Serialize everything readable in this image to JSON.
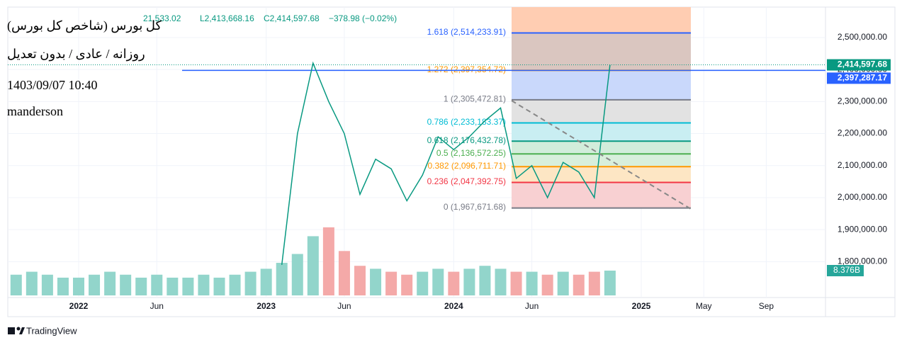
{
  "chart_data": {
    "type": "line",
    "title_lines": [
      "کل بورس (شاخص کل بورس)",
      "روزانه / عادی / بدون تعدیل",
      "1403/09/07 10:40",
      "manderson"
    ],
    "header_texts": [
      "21,533.02",
      "L2,413,668.16",
      "C2,414,597.68",
      "−378.98 (−0.02%)"
    ],
    "brand": "TradingView",
    "price": {
      "color": "#089981",
      "x": [
        "2023-02",
        "2023-03",
        "2023-04",
        "2023-05",
        "2023-06",
        "2023-07",
        "2023-08",
        "2023-09",
        "2023-10",
        "2023-11",
        "2023-12",
        "2024-01",
        "2024-02",
        "2024-03",
        "2024-04",
        "2024-05",
        "2024-06",
        "2024-07",
        "2024-08",
        "2024-09",
        "2024-10",
        "2024-11"
      ],
      "values": [
        1790000,
        2200000,
        2420000,
        2300000,
        2200000,
        2010000,
        2120000,
        2090000,
        1990000,
        2070000,
        2190000,
        2150000,
        2190000,
        2240000,
        2280000,
        2060000,
        2100000,
        2000000,
        2110000,
        2080000,
        2000000,
        2414597.68
      ],
      "last_label": "2,414,597.68"
    },
    "volume": {
      "up_color": "#92d5cb",
      "down_color": "#f4a9a8",
      "x": [
        "2021-09",
        "2021-10",
        "2021-11",
        "2021-12",
        "2022-01",
        "2022-02",
        "2022-03",
        "2022-04",
        "2022-05",
        "2022-06",
        "2022-07",
        "2022-08",
        "2022-09",
        "2022-10",
        "2022-11",
        "2022-12",
        "2023-01",
        "2023-02",
        "2023-03",
        "2023-04",
        "2023-05",
        "2023-06",
        "2023-07",
        "2023-08",
        "2023-09",
        "2023-10",
        "2023-11",
        "2023-12",
        "2024-01",
        "2024-02",
        "2024-03",
        "2024-04",
        "2024-05",
        "2024-06",
        "2024-07",
        "2024-08",
        "2024-09",
        "2024-10",
        "2024-11"
      ],
      "values": [
        7,
        8,
        7,
        6,
        6,
        7,
        8,
        7,
        6,
        7,
        6,
        6,
        7,
        6,
        7,
        8,
        9,
        11,
        14,
        20,
        23,
        15,
        10,
        9,
        8,
        7,
        8,
        9,
        8,
        9,
        10,
        9,
        8,
        8,
        7,
        8,
        7,
        8,
        8.376
      ],
      "vlim": [
        0,
        28
      ],
      "last_label": "8.376B"
    },
    "hline": {
      "value": 2397287.17,
      "label": "2,397,287.17",
      "color": "#2962ff"
    },
    "fib_levels": [
      {
        "value": 1967671.68,
        "label": "0 (1,967,671.68)",
        "color": "#787b86",
        "fill": "#f8d0d2"
      },
      {
        "value": 2047392.75,
        "label": "0.236 (2,047,392.75)",
        "color": "#f23645",
        "fill": "#fde6c4"
      },
      {
        "value": 2096711.71,
        "label": "0.382 (2,096,711.71)",
        "color": "#ff9800",
        "fill": "#d8efdc"
      },
      {
        "value": 2136572.25,
        "label": "0.5 (2,136,572.25)",
        "color": "#4caf50",
        "fill": "#d2eddb"
      },
      {
        "value": 2176432.78,
        "label": "0.618 (2,176,432.78)",
        "color": "#089981",
        "fill": "#c9eef2"
      },
      {
        "value": 2233183.37,
        "label": "0.786 (2,233,183.37)",
        "color": "#00bcd4",
        "fill": "#e2e2e2"
      },
      {
        "value": 2305472.81,
        "label": "1 (2,305,472.81)",
        "color": "#787b86",
        "fill": "#c9d8fb"
      },
      {
        "value": 2397354.72,
        "label": "1.272 (2,397,354.72)",
        "color": "#ff9800",
        "fill": "#dac6c0"
      },
      {
        "value": 2514233.91,
        "label": "1.618 (2,514,233.91)",
        "color": "#2962ff",
        "fill": "#ffcdb2"
      }
    ],
    "ylim": [
      1688000,
      2595000
    ],
    "yticks": [
      {
        "value": 1800000,
        "label": "1,800,000.00"
      },
      {
        "value": 1900000,
        "label": "1,900,000.00"
      },
      {
        "value": 2000000,
        "label": "2,000,000.00"
      },
      {
        "value": 2100000,
        "label": "2,100,000.00"
      },
      {
        "value": 2200000,
        "label": "2,200,000.00"
      },
      {
        "value": 2300000,
        "label": "2,300,000.00"
      },
      {
        "value": 2400000,
        "label": "2,400,000.00"
      },
      {
        "value": 2500000,
        "label": "2,500,000.00"
      }
    ],
    "xticks": [
      {
        "value": "2022-01",
        "label": "2022"
      },
      {
        "value": "2022-06",
        "label": "Jun"
      },
      {
        "value": "2023-01",
        "label": "2023"
      },
      {
        "value": "2023-06",
        "label": "Jun"
      },
      {
        "value": "2024-01",
        "label": "2024"
      },
      {
        "value": "2024-06",
        "label": "Jun"
      },
      {
        "value": "2025-01",
        "label": "2025"
      },
      {
        "value": "2025-05",
        "label": "May"
      },
      {
        "value": "2025-09",
        "label": "Sep"
      }
    ],
    "grid": true
  }
}
